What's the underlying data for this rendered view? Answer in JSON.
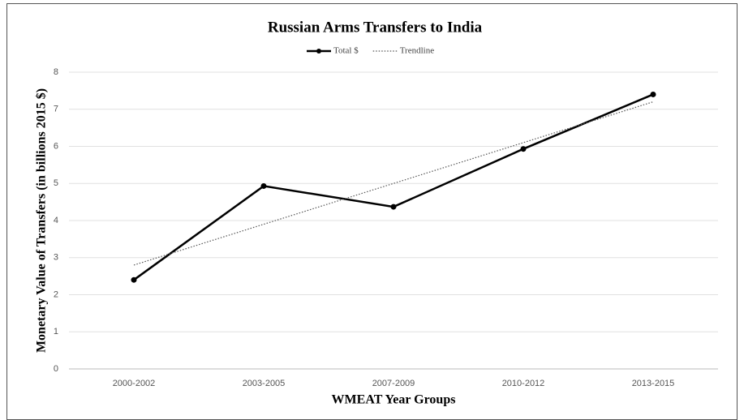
{
  "chart_data": {
    "type": "line",
    "title": "Russian Arms Transfers to India",
    "x_label": "WMEAT Year Groups",
    "y_label": "Monetary Value of Transfers (in billions 2015 $)",
    "categories": [
      "2000-2002",
      "2003-2005",
      "2007-2009",
      "2010-2012",
      "2013-2015"
    ],
    "series": [
      {
        "name": "Total $",
        "color": "#000000",
        "line_style": "solid",
        "markers": true,
        "values": [
          2.4,
          4.93,
          4.37,
          5.93,
          7.4
        ]
      },
      {
        "name": "Trendline",
        "color": "#555555",
        "line_style": "dotted",
        "markers": false,
        "values": [
          2.8,
          3.9,
          5.0,
          6.1,
          7.2
        ]
      }
    ],
    "ylim": [
      0,
      8
    ],
    "yticks": [
      0,
      1,
      2,
      3,
      4,
      5,
      6,
      7,
      8
    ],
    "grid": true,
    "legend": "top"
  }
}
